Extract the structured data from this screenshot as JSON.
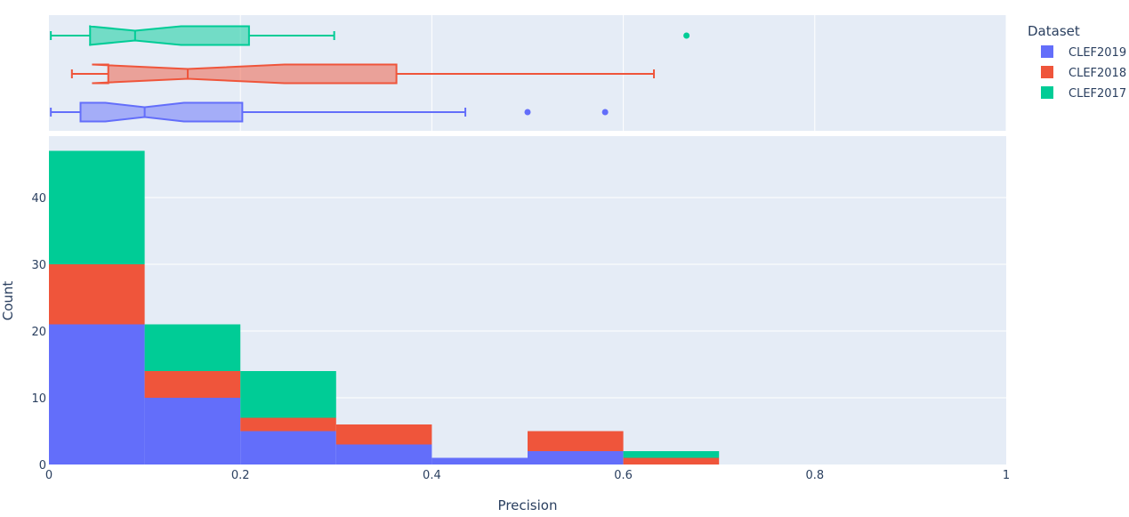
{
  "chart_data": {
    "type": "histogram-with-marginal-box",
    "barmode": "stack",
    "xlabel": "Precision",
    "ylabel": "Count",
    "xlim": [
      0,
      1
    ],
    "ylim": [
      0,
      49.2
    ],
    "x_ticks": [
      0,
      0.2,
      0.4,
      0.6,
      0.8,
      1
    ],
    "x_tick_labels": [
      "0",
      "0.2",
      "0.4",
      "0.6",
      "0.8",
      "1"
    ],
    "y_ticks": [
      0,
      10,
      20,
      30,
      40
    ],
    "y_tick_labels": [
      "0",
      "10",
      "20",
      "30",
      "40"
    ],
    "grid": true,
    "legend": {
      "title": "Dataset",
      "placement": "right"
    },
    "bin_edges": [
      0,
      0.1,
      0.2,
      0.3,
      0.4,
      0.5,
      0.6,
      0.7
    ],
    "series": [
      {
        "name": "CLEF2019",
        "color": "#636efa",
        "counts": [
          21,
          10,
          5,
          3,
          1,
          2,
          0
        ],
        "box": {
          "min": 0.002,
          "q1": 0.033,
          "median": 0.1,
          "q3": 0.202,
          "max": 0.435,
          "notch": [
            0.059,
            0.141
          ],
          "outliers": [
            0.5,
            0.581
          ]
        }
      },
      {
        "name": "CLEF2018",
        "color": "#EF553B",
        "counts": [
          9,
          4,
          2,
          3,
          0,
          3,
          1
        ],
        "box": {
          "min": 0.024,
          "q1": 0.062,
          "median": 0.145,
          "q3": 0.363,
          "max": 0.632,
          "notch": [
            0.045,
            0.246
          ],
          "outliers": []
        }
      },
      {
        "name": "CLEF2017",
        "color": "#00cc96",
        "counts": [
          17,
          7,
          7,
          0,
          0,
          0,
          1
        ],
        "box": {
          "min": 0.002,
          "q1": 0.043,
          "median": 0.09,
          "q3": 0.209,
          "max": 0.298,
          "notch": [
            0.042,
            0.138
          ],
          "outliers": [
            0.666
          ]
        }
      }
    ]
  }
}
